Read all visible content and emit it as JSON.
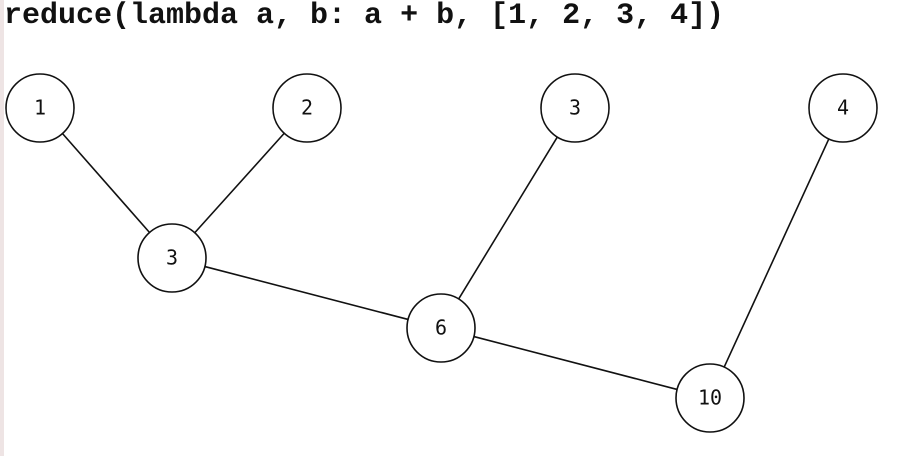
{
  "title": "reduce(lambda a, b: a + b, [1, 2, 3, 4])",
  "diagram": {
    "type": "reduction-tree",
    "nodes": [
      {
        "id": "leaf1",
        "label": "1"
      },
      {
        "id": "leaf2",
        "label": "2"
      },
      {
        "id": "leaf3",
        "label": "3"
      },
      {
        "id": "leaf4",
        "label": "4"
      },
      {
        "id": "sum3",
        "label": "3"
      },
      {
        "id": "sum6",
        "label": "6"
      },
      {
        "id": "sum10",
        "label": "10"
      }
    ],
    "edges": [
      {
        "from": "leaf1",
        "to": "sum3"
      },
      {
        "from": "leaf2",
        "to": "sum3"
      },
      {
        "from": "sum3",
        "to": "sum6"
      },
      {
        "from": "leaf3",
        "to": "sum6"
      },
      {
        "from": "sum6",
        "to": "sum10"
      },
      {
        "from": "leaf4",
        "to": "sum10"
      }
    ]
  },
  "colors": {
    "stroke": "#111111",
    "node_fill": "#ffffff",
    "text": "#111111"
  }
}
